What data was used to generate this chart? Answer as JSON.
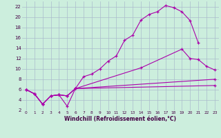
{
  "xlabel": "Windchill (Refroidissement éolien,°C)",
  "bg_color": "#cceedd",
  "grid_color": "#aabbcc",
  "line_color": "#aa00aa",
  "xlim": [
    -0.5,
    23.5
  ],
  "ylim": [
    2,
    23
  ],
  "xticks": [
    0,
    1,
    2,
    3,
    4,
    5,
    6,
    7,
    8,
    9,
    10,
    11,
    12,
    13,
    14,
    15,
    16,
    17,
    18,
    19,
    20,
    21,
    22,
    23
  ],
  "yticks": [
    2,
    4,
    6,
    8,
    10,
    12,
    14,
    16,
    18,
    20,
    22
  ],
  "line1_x": [
    0,
    1,
    2,
    3,
    4,
    5,
    6,
    7,
    8,
    9,
    10,
    11,
    12,
    13,
    14,
    15,
    16,
    17,
    18,
    19,
    20,
    21
  ],
  "line1_y": [
    6.0,
    5.2,
    3.2,
    4.8,
    5.0,
    2.8,
    6.2,
    8.5,
    9.0,
    10.0,
    11.5,
    12.5,
    15.5,
    16.5,
    19.4,
    20.5,
    21.0,
    22.2,
    21.8,
    21.0,
    19.3,
    15.0
  ],
  "line2_x": [
    0,
    1,
    2,
    3,
    4,
    5,
    6,
    14,
    19,
    20,
    21,
    22,
    23
  ],
  "line2_y": [
    6.0,
    5.2,
    3.2,
    4.8,
    5.0,
    4.8,
    6.2,
    10.2,
    13.8,
    12.0,
    11.8,
    10.5,
    9.8
  ],
  "line3_x": [
    0,
    1,
    2,
    3,
    4,
    5,
    6,
    23
  ],
  "line3_y": [
    6.0,
    5.2,
    3.2,
    4.8,
    5.0,
    4.8,
    6.2,
    8.0
  ],
  "line4_x": [
    0,
    1,
    2,
    3,
    4,
    5,
    6,
    23
  ],
  "line4_y": [
    6.0,
    5.2,
    3.2,
    4.8,
    5.0,
    4.8,
    6.2,
    6.8
  ]
}
